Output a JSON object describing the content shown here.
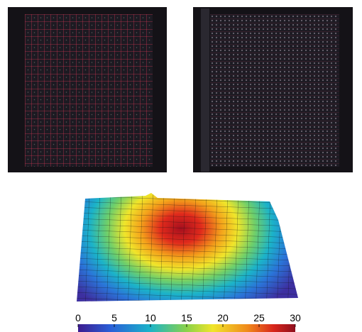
{
  "colorbar": {
    "lim": [
      0,
      30
    ],
    "ticks": [
      0,
      5,
      10,
      15,
      20,
      25,
      30
    ]
  }
}
